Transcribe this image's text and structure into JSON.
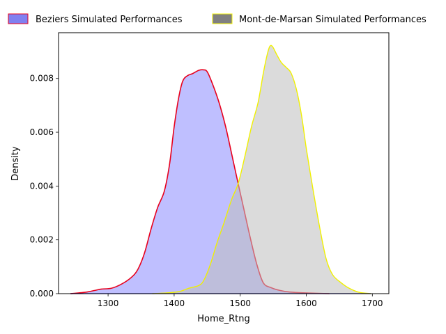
{
  "chart_data": {
    "type": "area",
    "xlabel": "Home_Rtng",
    "ylabel": "Density",
    "xlim": [
      1225,
      1725
    ],
    "ylim": [
      0,
      0.0097
    ],
    "x_ticks": [
      1300,
      1400,
      1500,
      1600,
      1700
    ],
    "y_ticks": [
      0.0,
      0.002,
      0.004,
      0.006,
      0.008
    ],
    "x_tick_labels": [
      "1300",
      "1400",
      "1500",
      "1600",
      "1700"
    ],
    "y_tick_labels": [
      "0.000",
      "0.002",
      "0.004",
      "0.006",
      "0.008"
    ],
    "legend_position": "top",
    "grid": false,
    "series": [
      {
        "name": "Beziers Simulated Performances",
        "fill_color": "#bfbfff",
        "legend_fill": "#8080f0",
        "line_color": "#e8001c",
        "points": [
          [
            1243,
            0.0
          ],
          [
            1265,
            5e-05
          ],
          [
            1280,
            0.00012
          ],
          [
            1290,
            0.00017
          ],
          [
            1305,
            0.0002
          ],
          [
            1320,
            0.00035
          ],
          [
            1335,
            0.0006
          ],
          [
            1345,
            0.0009
          ],
          [
            1355,
            0.0015
          ],
          [
            1365,
            0.0024
          ],
          [
            1375,
            0.0032
          ],
          [
            1385,
            0.0038
          ],
          [
            1393,
            0.0048
          ],
          [
            1400,
            0.0062
          ],
          [
            1407,
            0.0073
          ],
          [
            1413,
            0.0079
          ],
          [
            1420,
            0.0081
          ],
          [
            1428,
            0.00818
          ],
          [
            1437,
            0.0083
          ],
          [
            1444,
            0.00832
          ],
          [
            1450,
            0.00825
          ],
          [
            1458,
            0.0078
          ],
          [
            1468,
            0.0071
          ],
          [
            1478,
            0.0062
          ],
          [
            1487,
            0.0052
          ],
          [
            1495,
            0.0043
          ],
          [
            1505,
            0.0032
          ],
          [
            1515,
            0.0021
          ],
          [
            1525,
            0.0011
          ],
          [
            1535,
            0.0004
          ],
          [
            1547,
            0.00022
          ],
          [
            1560,
            0.00012
          ],
          [
            1575,
            6e-05
          ],
          [
            1595,
            3e-05
          ],
          [
            1635,
            0.0
          ]
        ]
      },
      {
        "name": "Mont-de-Marsan Simulated Performances",
        "fill_color": "#bebebe",
        "legend_fill": "#808080",
        "line_color": "#f0f000",
        "points": [
          [
            1367,
            0.0
          ],
          [
            1390,
            3e-05
          ],
          [
            1408,
            8e-05
          ],
          [
            1422,
            0.0002
          ],
          [
            1437,
            0.0003
          ],
          [
            1445,
            0.0005
          ],
          [
            1455,
            0.0011
          ],
          [
            1465,
            0.0019
          ],
          [
            1475,
            0.0026
          ],
          [
            1487,
            0.0035
          ],
          [
            1497,
            0.0041
          ],
          [
            1507,
            0.0051
          ],
          [
            1517,
            0.0062
          ],
          [
            1527,
            0.0071
          ],
          [
            1535,
            0.0082
          ],
          [
            1541,
            0.0089
          ],
          [
            1545,
            0.0092
          ],
          [
            1549,
            0.00918
          ],
          [
            1555,
            0.0089
          ],
          [
            1562,
            0.0086
          ],
          [
            1570,
            0.0084
          ],
          [
            1577,
            0.0082
          ],
          [
            1585,
            0.0076
          ],
          [
            1593,
            0.0066
          ],
          [
            1600,
            0.0054
          ],
          [
            1610,
            0.0039
          ],
          [
            1620,
            0.0025
          ],
          [
            1630,
            0.0013
          ],
          [
            1640,
            0.0007
          ],
          [
            1653,
            0.0004
          ],
          [
            1665,
            0.0002
          ],
          [
            1680,
            5e-05
          ],
          [
            1698,
            0.0
          ]
        ]
      }
    ]
  }
}
